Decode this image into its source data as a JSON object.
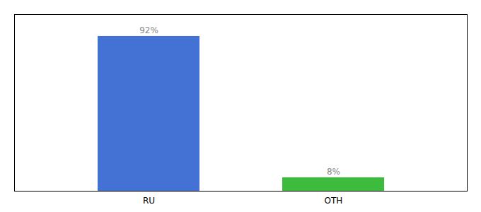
{
  "chart_data": {
    "type": "bar",
    "categories": [
      "RU",
      "OTH"
    ],
    "values": [
      92,
      8
    ],
    "value_labels": [
      "92%",
      "8%"
    ],
    "colors": [
      "#4472d4",
      "#3dbb3d"
    ],
    "ylim": [
      0,
      105
    ],
    "data_labels": true,
    "tick_labels": "x"
  }
}
